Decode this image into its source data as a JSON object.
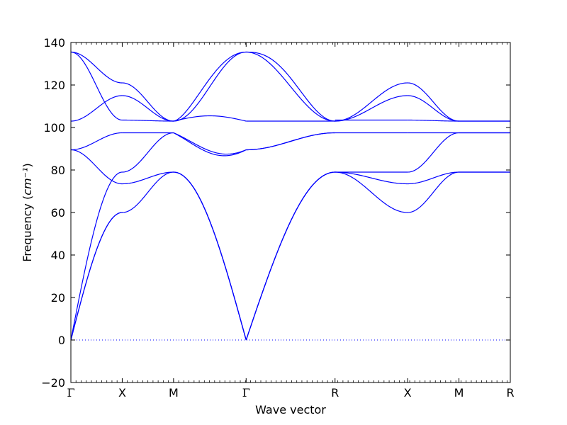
{
  "chart_data": {
    "type": "line",
    "title": "",
    "xlabel": "Wave vector",
    "ylabel": "Frequency",
    "ylabel_unit": "cm⁻¹",
    "ylim": [
      -20,
      140
    ],
    "yticks": [
      -20,
      0,
      20,
      40,
      60,
      80,
      100,
      120,
      140
    ],
    "grid": false,
    "line_color": "#0000ff",
    "zero_line": {
      "y": 0,
      "style": "dotted",
      "color": "#0000ff"
    },
    "kpoints": [
      {
        "label": "Γ",
        "x": 0.0
      },
      {
        "label": "X",
        "x": 0.5
      },
      {
        "label": "M",
        "x": 1.0
      },
      {
        "label": "Γ",
        "x": 1.707
      },
      {
        "label": "R",
        "x": 2.573
      },
      {
        "label": "X",
        "x": 3.28
      },
      {
        "label": "M",
        "x": 3.78
      },
      {
        "label": "R",
        "x": 4.28
      }
    ],
    "segments": [
      {
        "from": "Γ",
        "to": "X",
        "bands": [
          {
            "type": "acoustic",
            "a": 0,
            "b": 60
          },
          {
            "type": "acoustic",
            "a": 0,
            "b": 60
          },
          {
            "type": "acoustic",
            "a": 0,
            "b": 79
          },
          {
            "type": "cos",
            "a": 89.5,
            "b": 73.5
          },
          {
            "type": "cos",
            "a": 89.5,
            "b": 97.5
          },
          {
            "type": "cos",
            "a": 103,
            "b": 115
          },
          {
            "type": "cos",
            "a": 135.5,
            "b": 121
          },
          {
            "type": "cos",
            "a": 135.5,
            "b": 103.5
          }
        ]
      },
      {
        "from": "X",
        "to": "M",
        "bands": [
          {
            "type": "cos",
            "a": 60,
            "b": 79
          },
          {
            "type": "cos",
            "a": 73.5,
            "b": 79
          },
          {
            "type": "cos",
            "a": 79,
            "b": 97.5
          },
          {
            "type": "cos",
            "a": 97.5,
            "b": 97.5
          },
          {
            "type": "cos",
            "a": 103.5,
            "b": 103
          },
          {
            "type": "cos",
            "a": 115,
            "b": 103
          },
          {
            "type": "cos",
            "a": 121,
            "b": 103
          }
        ]
      },
      {
        "from": "M",
        "to": "Γ",
        "bands": [
          {
            "type": "acoustic",
            "a": 79,
            "b": 0
          },
          {
            "type": "acoustic",
            "a": 79,
            "b": 0
          },
          {
            "type": "acoustic",
            "a": 79,
            "b": 0
          },
          {
            "type": "bump",
            "a": 97.5,
            "b": 89.5,
            "bump": -5.5
          },
          {
            "type": "bump",
            "a": 97.5,
            "b": 89.5,
            "bump": -4.5
          },
          {
            "type": "bump",
            "a": 103,
            "b": 103,
            "bump": 2.5
          },
          {
            "type": "cos",
            "a": 103,
            "b": 135.5
          },
          {
            "type": "cos",
            "a": 103,
            "b": 135.5,
            "skew": 0.8
          }
        ]
      },
      {
        "from": "Γ",
        "to": "R",
        "bands": [
          {
            "type": "acoustic",
            "a": 0,
            "b": 79
          },
          {
            "type": "acoustic",
            "a": 0,
            "b": 79
          },
          {
            "type": "acoustic",
            "a": 0,
            "b": 79
          },
          {
            "type": "cos",
            "a": 89.5,
            "b": 97.5
          },
          {
            "type": "cos",
            "a": 89.5,
            "b": 97.5
          },
          {
            "type": "cos",
            "a": 103,
            "b": 103
          },
          {
            "type": "cos",
            "a": 135.5,
            "b": 103
          },
          {
            "type": "cos",
            "a": 135.5,
            "b": 103,
            "skew": 1.25
          }
        ]
      },
      {
        "from": "R",
        "to": "X",
        "bands": [
          {
            "type": "cos",
            "a": 79,
            "b": 60
          },
          {
            "type": "cos",
            "a": 79,
            "b": 73.5
          },
          {
            "type": "cos",
            "a": 79,
            "b": 79
          },
          {
            "type": "cos",
            "a": 97.5,
            "b": 97.5
          },
          {
            "type": "cos",
            "a": 103,
            "b": 115
          },
          {
            "type": "cos",
            "a": 103,
            "b": 121
          },
          {
            "type": "cos",
            "a": 103.5,
            "b": 103.5
          }
        ]
      },
      {
        "from": "X",
        "to": "M",
        "bands": [
          {
            "type": "cos",
            "a": 60,
            "b": 79
          },
          {
            "type": "cos",
            "a": 73.5,
            "b": 79
          },
          {
            "type": "cos",
            "a": 79,
            "b": 97.5
          },
          {
            "type": "cos",
            "a": 97.5,
            "b": 97.5
          },
          {
            "type": "cos",
            "a": 103.5,
            "b": 103
          },
          {
            "type": "cos",
            "a": 115,
            "b": 103
          },
          {
            "type": "cos",
            "a": 121,
            "b": 103
          }
        ]
      },
      {
        "from": "M",
        "to": "R",
        "bands": [
          {
            "type": "cos",
            "a": 79,
            "b": 79
          },
          {
            "type": "cos",
            "a": 79,
            "b": 79
          },
          {
            "type": "cos",
            "a": 97.5,
            "b": 97.5
          },
          {
            "type": "cos",
            "a": 97.5,
            "b": 97.5
          },
          {
            "type": "cos",
            "a": 103,
            "b": 103
          },
          {
            "type": "cos",
            "a": 103,
            "b": 103
          }
        ]
      }
    ]
  }
}
